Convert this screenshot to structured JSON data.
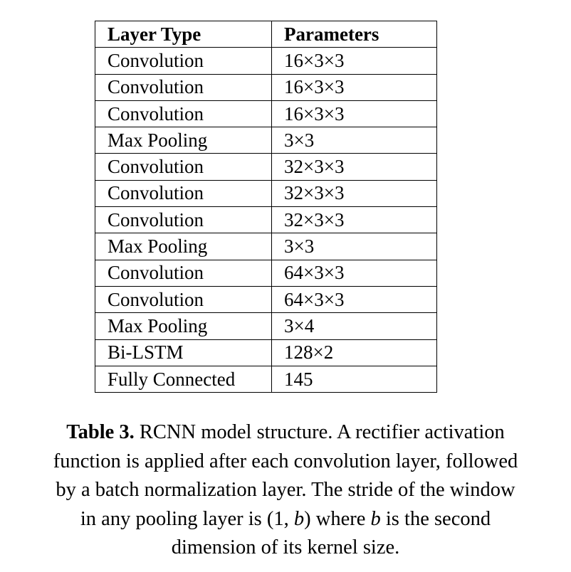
{
  "table": {
    "headers": [
      "Layer Type",
      "Parameters"
    ],
    "rows": [
      [
        "Convolution",
        "16×3×3"
      ],
      [
        "Convolution",
        "16×3×3"
      ],
      [
        "Convolution",
        "16×3×3"
      ],
      [
        "Max Pooling",
        "3×3"
      ],
      [
        "Convolution",
        "32×3×3"
      ],
      [
        "Convolution",
        "32×3×3"
      ],
      [
        "Convolution",
        "32×3×3"
      ],
      [
        "Max Pooling",
        "3×3"
      ],
      [
        "Convolution",
        "64×3×3"
      ],
      [
        "Convolution",
        "64×3×3"
      ],
      [
        "Max Pooling",
        "3×4"
      ],
      [
        "Bi-LSTM",
        "128×2"
      ],
      [
        "Fully Connected",
        "145"
      ]
    ]
  },
  "caption": {
    "label": "Table 3.",
    "line1": " RCNN model structure. A rectifier activation",
    "line2": "function is applied after each convolution layer, followed",
    "line3": "by a batch normalization layer. The stride of the window",
    "line4_a": "in any pooling layer is ",
    "stride_math": "(1, b)",
    "line4_b": " where ",
    "var_b": "b",
    "line4_c": " is the second",
    "line5": "dimension of its kernel size."
  }
}
